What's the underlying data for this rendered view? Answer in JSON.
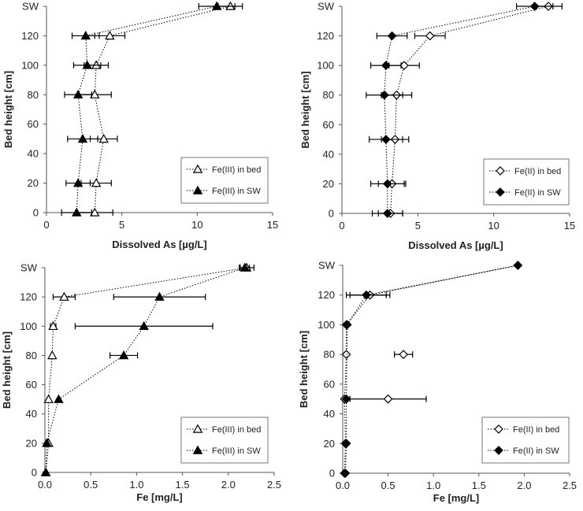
{
  "figure": {
    "background": "#ffffff"
  },
  "chart_data": [
    {
      "type": "line",
      "panel": "top-left",
      "xlabel": "Dissolved As [µg/L]",
      "ylabel": "Bed height [cm]",
      "xlim": [
        0,
        15
      ],
      "xticks": [
        0,
        5,
        10,
        15
      ],
      "ylim": [
        0,
        140
      ],
      "yticks": [
        0,
        20,
        40,
        60,
        80,
        100,
        120,
        140
      ],
      "yticklabels": [
        "0",
        "20",
        "40",
        "60",
        "80",
        "100",
        "120",
        "SW"
      ],
      "grid": false,
      "legend": "bottom-right",
      "series": [
        {
          "name": "Fe(III) in bed",
          "marker": "triangle-open",
          "color": "#000000",
          "x": [
            3.2,
            3.3,
            3.8,
            3.2,
            3.3,
            4.2,
            12.2
          ],
          "y": [
            0,
            20,
            50,
            80,
            100,
            120,
            140
          ],
          "xerr": [
            1.2,
            1.0,
            0.9,
            1.1,
            0.8,
            1.0,
            0.8
          ]
        },
        {
          "name": "Fe(III) in SW",
          "marker": "triangle-filled",
          "color": "#000000",
          "x": [
            2.0,
            2.1,
            2.4,
            2.1,
            2.7,
            2.6,
            11.3
          ],
          "y": [
            0,
            20,
            50,
            80,
            100,
            120,
            140
          ],
          "xerr": [
            1.0,
            0.8,
            1.0,
            0.9,
            0.9,
            0.9,
            1.2
          ]
        }
      ]
    },
    {
      "type": "line",
      "panel": "top-right",
      "xlabel": "Dissolved As [µg/L]",
      "ylabel": "Bed height [cm]",
      "xlim": [
        0,
        15
      ],
      "xticks": [
        0,
        5,
        10,
        15
      ],
      "ylim": [
        0,
        140
      ],
      "yticks": [
        0,
        20,
        40,
        60,
        80,
        100,
        120,
        140
      ],
      "yticklabels": [
        "0",
        "20",
        "40",
        "60",
        "80",
        "100",
        "120",
        "SW"
      ],
      "grid": false,
      "legend": "bottom-right",
      "series": [
        {
          "name": "Fe(II) in bed",
          "marker": "diamond-open",
          "color": "#000000",
          "x": [
            3.2,
            3.3,
            3.5,
            3.6,
            4.1,
            5.8,
            13.6
          ],
          "y": [
            0,
            20,
            50,
            80,
            100,
            120,
            140
          ],
          "xerr": [
            0.8,
            0.9,
            0.9,
            1.0,
            1.0,
            1.0,
            0.9
          ]
        },
        {
          "name": "Fe(II) in SW",
          "marker": "diamond-filled",
          "color": "#000000",
          "x": [
            3.0,
            3.0,
            2.9,
            2.8,
            2.9,
            3.3,
            12.7
          ],
          "y": [
            0,
            20,
            50,
            80,
            100,
            120,
            140
          ],
          "xerr": [
            1.0,
            1.1,
            1.1,
            1.2,
            1.0,
            1.0,
            1.2
          ]
        }
      ]
    },
    {
      "type": "line",
      "panel": "bottom-left",
      "xlabel": "Fe [mg/L]",
      "ylabel": "Bed height [cm]",
      "xlim": [
        0,
        2.5
      ],
      "xticks": [
        0,
        0.5,
        1,
        1.5,
        2,
        2.5
      ],
      "xticklabels": [
        "0.0",
        "0.5",
        "1.0",
        "1.5",
        "2.0",
        "2.5"
      ],
      "ylim": [
        0,
        140
      ],
      "yticks": [
        0,
        20,
        40,
        60,
        80,
        100,
        120,
        140
      ],
      "yticklabels": [
        "0",
        "20",
        "40",
        "60",
        "80",
        "100",
        "120",
        "SW"
      ],
      "grid": false,
      "legend": "bottom-right",
      "series": [
        {
          "name": "Fe(III) in bed",
          "marker": "triangle-open",
          "color": "#000000",
          "x": [
            0.01,
            0.04,
            0.04,
            0.08,
            0.09,
            0.21,
            2.2
          ],
          "y": [
            0,
            20,
            50,
            80,
            100,
            120,
            140
          ],
          "xerr": [
            0,
            0,
            0,
            0,
            0.03,
            0.12,
            0.08
          ]
        },
        {
          "name": "Fe(III) in SW",
          "marker": "triangle-filled",
          "color": "#000000",
          "x": [
            0.01,
            0.02,
            0.15,
            0.86,
            1.08,
            1.25,
            2.18
          ],
          "y": [
            0,
            20,
            50,
            80,
            100,
            120,
            140
          ],
          "xerr": [
            0,
            0,
            0,
            0.15,
            0.75,
            0.5,
            0.05
          ]
        }
      ]
    },
    {
      "type": "line",
      "panel": "bottom-right",
      "xlabel": "Fe [mg/L]",
      "ylabel": "Bed height [cm]",
      "xlim": [
        0,
        2.5
      ],
      "xticks": [
        0,
        0.5,
        1,
        1.5,
        2,
        2.5
      ],
      "xticklabels": [
        "0.0",
        "0.5",
        "1.0",
        "1.5",
        "2.0",
        "2.5"
      ],
      "ylim": [
        0,
        140
      ],
      "yticks": [
        0,
        20,
        40,
        60,
        80,
        100,
        120,
        140
      ],
      "yticklabels": [
        "0",
        "20",
        "40",
        "60",
        "80",
        "100",
        "120",
        "SW"
      ],
      "grid": false,
      "legend": "bottom-right",
      "series": [
        {
          "name": "Fe(II) in bed",
          "marker": "diamond-open",
          "color": "#000000",
          "x": [
            0.02,
            0.03,
            0.02,
            0.04,
            0.04,
            0.3,
            1.93
          ],
          "y": [
            0,
            20,
            50,
            80,
            100,
            120,
            140
          ],
          "xerr": [
            0,
            0,
            0,
            0,
            0,
            0.22,
            0
          ],
          "extra_points": [
            {
              "x": 0.67,
              "y": 80,
              "xerr": 0.1
            },
            {
              "x": 0.5,
              "y": 50,
              "xerr": 0.42
            }
          ]
        },
        {
          "name": "Fe(II) in SW",
          "marker": "diamond-filled",
          "color": "#000000",
          "x": [
            0.03,
            0.04,
            0.04,
            0.04,
            0.05,
            0.26,
            1.93
          ],
          "y": [
            0,
            20,
            20,
            50,
            100,
            120,
            140
          ],
          "xerr": [
            0,
            0,
            0,
            0,
            0,
            0.22,
            0
          ]
        }
      ]
    }
  ]
}
